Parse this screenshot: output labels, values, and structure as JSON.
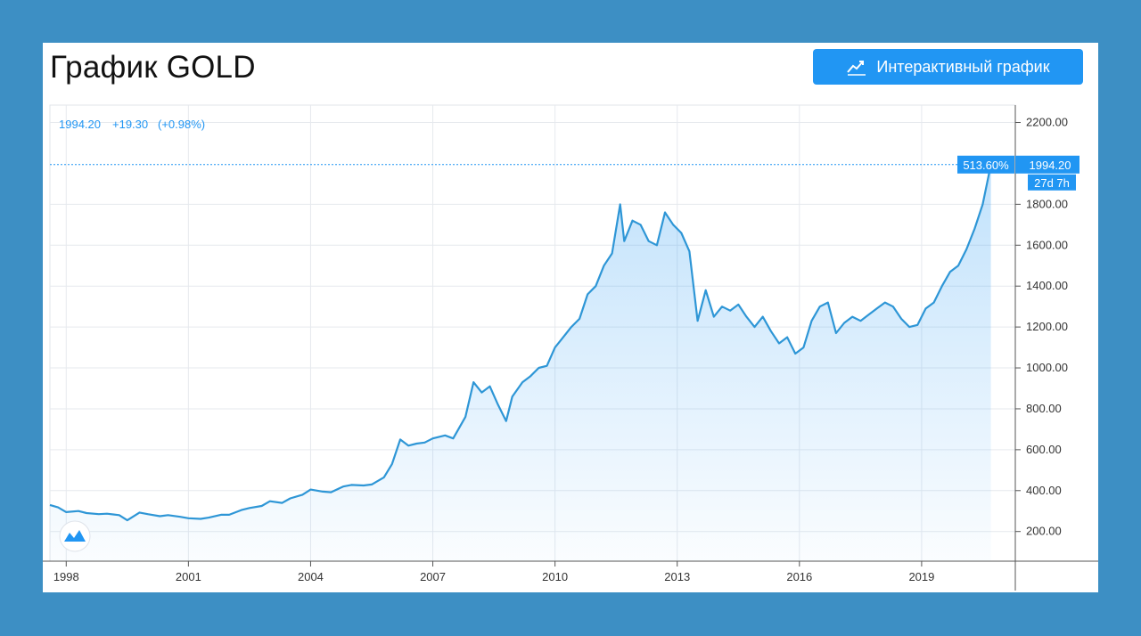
{
  "header": {
    "title": "График GOLD",
    "button_label": "Интерактивный график",
    "button_icon": "line-chart-icon"
  },
  "legend": {
    "price": "1994.20",
    "change": "+19.30",
    "change_pct": "(+0.98%)"
  },
  "last_price_tags": {
    "percent": "513.60%",
    "price": "1994.20",
    "countdown": "27d 7h"
  },
  "colors": {
    "line": "#2e96d6",
    "accent": "#2196f3",
    "background": "#3d8fc4",
    "grid": "#e6e9ee"
  },
  "chart_data": {
    "type": "area",
    "title": "График GOLD",
    "xlabel": "",
    "ylabel": "",
    "xlim": [
      1997.6,
      2021.3
    ],
    "ylim": [
      55,
      2285
    ],
    "grid": true,
    "legend": "top-left",
    "x_ticks": [
      "1998",
      "2001",
      "2004",
      "2007",
      "2010",
      "2013",
      "2016",
      "2019"
    ],
    "y_ticks": [
      "200.00",
      "400.00",
      "600.00",
      "800.00",
      "1000.00",
      "1200.00",
      "1400.00",
      "1600.00",
      "1800.00",
      "2200.00"
    ],
    "series": [
      {
        "x": [
          1997.6,
          1997.8,
          1998.0,
          1998.3,
          1998.5,
          1998.8,
          1999.0,
          1999.3,
          1999.5,
          1999.8,
          2000.0,
          2000.3,
          2000.5,
          2000.8,
          2001.0,
          2001.3,
          2001.5,
          2001.8,
          2002.0,
          2002.3,
          2002.5,
          2002.8,
          2003.0,
          2003.3,
          2003.5,
          2003.8,
          2004.0,
          2004.3,
          2004.5,
          2004.8,
          2005.0,
          2005.3,
          2005.5,
          2005.8,
          2006.0,
          2006.2,
          2006.4,
          2006.6,
          2006.8,
          2007.0,
          2007.3,
          2007.5,
          2007.8,
          2008.0,
          2008.2,
          2008.4,
          2008.6,
          2008.8,
          2008.95,
          2009.2,
          2009.4,
          2009.6,
          2009.8,
          2010.0,
          2010.2,
          2010.4,
          2010.6,
          2010.8,
          2011.0,
          2011.2,
          2011.4,
          2011.6,
          2011.7,
          2011.9,
          2012.1,
          2012.3,
          2012.5,
          2012.7,
          2012.9,
          2013.1,
          2013.3,
          2013.5,
          2013.7,
          2013.9,
          2014.1,
          2014.3,
          2014.5,
          2014.7,
          2014.9,
          2015.1,
          2015.3,
          2015.5,
          2015.7,
          2015.9,
          2016.1,
          2016.3,
          2016.5,
          2016.7,
          2016.9,
          2017.1,
          2017.3,
          2017.5,
          2017.7,
          2017.9,
          2018.1,
          2018.3,
          2018.5,
          2018.7,
          2018.9,
          2019.1,
          2019.3,
          2019.5,
          2019.7,
          2019.9,
          2020.1,
          2020.3,
          2020.5,
          2020.7
        ],
        "y": [
          330,
          318,
          295,
          300,
          290,
          285,
          287,
          280,
          255,
          293,
          285,
          275,
          280,
          272,
          265,
          262,
          268,
          282,
          282,
          305,
          315,
          325,
          348,
          340,
          362,
          380,
          405,
          395,
          392,
          420,
          428,
          425,
          430,
          465,
          530,
          650,
          620,
          630,
          635,
          655,
          670,
          655,
          760,
          930,
          880,
          910,
          820,
          740,
          860,
          930,
          960,
          1000,
          1010,
          1100,
          1150,
          1200,
          1240,
          1360,
          1400,
          1500,
          1560,
          1800,
          1620,
          1720,
          1700,
          1620,
          1600,
          1760,
          1700,
          1660,
          1570,
          1230,
          1380,
          1250,
          1300,
          1280,
          1310,
          1250,
          1200,
          1250,
          1180,
          1120,
          1150,
          1070,
          1100,
          1230,
          1300,
          1320,
          1170,
          1220,
          1250,
          1230,
          1260,
          1290,
          1320,
          1300,
          1240,
          1200,
          1210,
          1290,
          1320,
          1400,
          1470,
          1500,
          1580,
          1680,
          1800,
          1994.2
        ]
      }
    ]
  }
}
